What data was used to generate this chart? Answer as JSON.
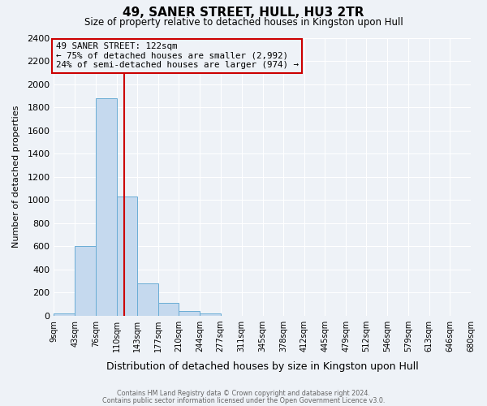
{
  "title": "49, SANER STREET, HULL, HU3 2TR",
  "subtitle": "Size of property relative to detached houses in Kingston upon Hull",
  "xlabel": "Distribution of detached houses by size in Kingston upon Hull",
  "ylabel": "Number of detached properties",
  "bin_edges": [
    9,
    43,
    76,
    110,
    143,
    177,
    210,
    244,
    277,
    311,
    345,
    378,
    412,
    445,
    479,
    512,
    546,
    579,
    613,
    646,
    680
  ],
  "bar_heights": [
    20,
    600,
    1880,
    1030,
    280,
    110,
    45,
    20,
    0,
    0,
    0,
    0,
    0,
    0,
    0,
    0,
    0,
    0,
    0,
    0
  ],
  "bar_color": "#c5d9ee",
  "bar_edge_color": "#6aadd5",
  "property_size": 122,
  "vline_color": "#cc0000",
  "annotation_text": "49 SANER STREET: 122sqm\n← 75% of detached houses are smaller (2,992)\n24% of semi-detached houses are larger (974) →",
  "annotation_box_edgecolor": "#cc0000",
  "ylim": [
    0,
    2400
  ],
  "yticks": [
    0,
    200,
    400,
    600,
    800,
    1000,
    1200,
    1400,
    1600,
    1800,
    2000,
    2200,
    2400
  ],
  "footer_line1": "Contains HM Land Registry data © Crown copyright and database right 2024.",
  "footer_line2": "Contains public sector information licensed under the Open Government Licence v3.0.",
  "background_color": "#eef2f7",
  "grid_color": "#ffffff",
  "title_fontsize": 11,
  "subtitle_fontsize": 8.5,
  "ylabel_fontsize": 8,
  "xlabel_fontsize": 9,
  "ytick_fontsize": 8,
  "xtick_fontsize": 7
}
